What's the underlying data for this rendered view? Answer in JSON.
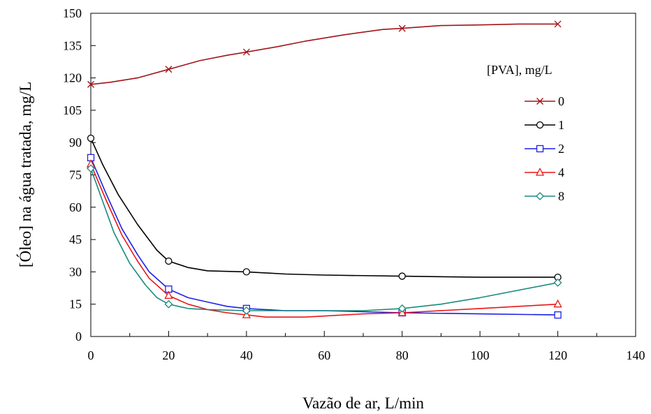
{
  "chart_data": {
    "type": "line",
    "xlabel": "Vazão de ar, L/min",
    "ylabel": "[Óleo] na água tratada, mg/L",
    "xlim": [
      0,
      140
    ],
    "ylim": [
      0,
      150
    ],
    "xticks": [
      0,
      20,
      40,
      60,
      80,
      100,
      120,
      140
    ],
    "yticks": [
      0,
      15,
      30,
      45,
      60,
      75,
      90,
      105,
      120,
      135,
      150
    ],
    "grid": false,
    "legend_title": "[PVA], mg/L",
    "legend_position": "right",
    "series": [
      {
        "name": "0",
        "color": "#a0151a",
        "marker": "x",
        "x": [
          0,
          20,
          40,
          80,
          120
        ],
        "y": [
          117,
          124,
          132,
          143,
          145
        ],
        "curve_x": [
          0,
          5,
          12,
          20,
          28,
          35,
          40,
          48,
          55,
          65,
          75,
          80,
          90,
          100,
          110,
          120
        ],
        "curve_y": [
          117,
          118,
          120,
          124,
          128,
          130.5,
          132,
          134.5,
          137,
          140,
          142.5,
          143,
          144.3,
          144.6,
          145,
          145
        ]
      },
      {
        "name": "1",
        "color": "#000000",
        "marker": "circle",
        "x": [
          0,
          20,
          40,
          80,
          120
        ],
        "y": [
          92,
          35,
          30,
          28,
          27.5
        ],
        "curve_x": [
          0,
          3,
          7,
          12,
          17,
          20,
          25,
          30,
          40,
          50,
          60,
          80,
          100,
          120
        ],
        "curve_y": [
          92,
          80,
          66,
          52,
          40,
          35,
          32,
          30.5,
          30,
          29,
          28.5,
          28,
          27.5,
          27.5
        ]
      },
      {
        "name": "2",
        "color": "#1f1fe8",
        "marker": "square",
        "x": [
          0,
          20,
          40,
          80,
          120
        ],
        "y": [
          83,
          22,
          13,
          11,
          10
        ],
        "curve_x": [
          0,
          4,
          8,
          12,
          15,
          20,
          25,
          30,
          35,
          40,
          50,
          60,
          70,
          80,
          100,
          120
        ],
        "curve_y": [
          83,
          66,
          50,
          38,
          30,
          22,
          18,
          16,
          14,
          13,
          12,
          12,
          11.5,
          11,
          10.5,
          10
        ]
      },
      {
        "name": "4",
        "color": "#e81717",
        "marker": "triangle",
        "x": [
          0,
          20,
          40,
          80,
          120
        ],
        "y": [
          80,
          19,
          10,
          11,
          15
        ],
        "curve_x": [
          0,
          4,
          8,
          12,
          15,
          20,
          25,
          30,
          35,
          40,
          45,
          55,
          70,
          80,
          100,
          120
        ],
        "curve_y": [
          80,
          63,
          47,
          35,
          27,
          19,
          15,
          12.5,
          11,
          10,
          9,
          9,
          10.5,
          11,
          13,
          15
        ]
      },
      {
        "name": "8",
        "color": "#1a8a7e",
        "marker": "diamond",
        "x": [
          0,
          20,
          40,
          80,
          120
        ],
        "y": [
          78,
          15,
          12,
          13,
          25
        ],
        "curve_x": [
          0,
          3,
          6,
          10,
          14,
          17,
          20,
          25,
          30,
          40,
          50,
          60,
          70,
          80,
          90,
          100,
          120
        ],
        "curve_y": [
          78,
          63,
          48,
          34,
          24,
          18,
          15,
          13,
          12.5,
          12,
          12,
          12,
          12,
          13,
          15,
          18,
          25
        ]
      }
    ]
  }
}
